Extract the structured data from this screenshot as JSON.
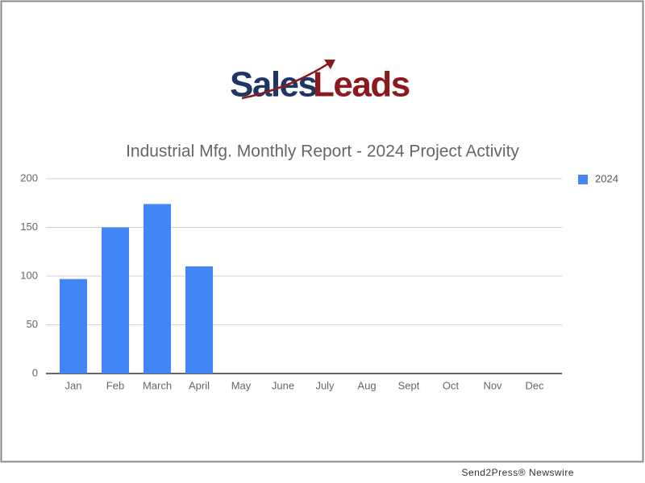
{
  "logo": [
    "Sales",
    "Leads"
  ],
  "footer": "Send2Press® Newswire",
  "chart_data": {
    "type": "bar",
    "title": "Industrial Mfg. Monthly Report - 2024 Project Activity",
    "categories": [
      "Jan",
      "Feb",
      "March",
      "April",
      "May",
      "June",
      "July",
      "Aug",
      "Sept",
      "Oct",
      "Nov",
      "Dec"
    ],
    "series": [
      {
        "name": "2024",
        "color": "#4285f4",
        "values": [
          97,
          150,
          174,
          110,
          null,
          null,
          null,
          null,
          null,
          null,
          null,
          null
        ]
      }
    ],
    "ylim": [
      0,
      200
    ],
    "yticks": [
      0,
      50,
      100,
      150,
      200
    ],
    "grid": true,
    "legend": "right"
  }
}
